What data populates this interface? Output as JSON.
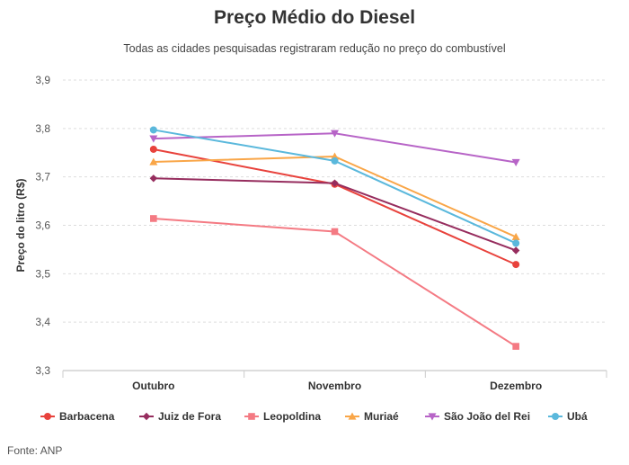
{
  "chart_data": {
    "type": "line",
    "title": "Preço Médio do Diesel",
    "subtitle": "Todas as cidades pesquisadas registraram redução no preço do combustível",
    "ylabel": "Preço do litro (R$)",
    "xlabel": "",
    "categories": [
      "Outubro",
      "Novembro",
      "Dezembro"
    ],
    "ylim": [
      3.3,
      3.9
    ],
    "yticks": [
      "3,3",
      "3,4",
      "3,5",
      "3,6",
      "3,7",
      "3,8",
      "3,9"
    ],
    "ytick_values": [
      3.3,
      3.4,
      3.5,
      3.6,
      3.7,
      3.8,
      3.9
    ],
    "grid": "horizontal dashed",
    "legend_position": "bottom",
    "series": [
      {
        "name": "Barbacena",
        "color": "#e8423c",
        "marker": "circle",
        "values": [
          3.757,
          3.685,
          3.519
        ]
      },
      {
        "name": "Juiz de Fora",
        "color": "#962d5e",
        "marker": "diamond",
        "values": [
          3.697,
          3.687,
          3.548
        ]
      },
      {
        "name": "Leopoldina",
        "color": "#f47a83",
        "marker": "square",
        "values": [
          3.614,
          3.587,
          3.35
        ]
      },
      {
        "name": "Muriaé",
        "color": "#f9a648",
        "marker": "triangle",
        "values": [
          3.731,
          3.742,
          3.576
        ]
      },
      {
        "name": "São João del Rei",
        "color": "#b764c7",
        "marker": "triangle-down",
        "values": [
          3.779,
          3.79,
          3.73
        ]
      },
      {
        "name": "Ubá",
        "color": "#5ab8dc",
        "marker": "circle",
        "values": [
          3.797,
          3.733,
          3.563
        ]
      }
    ]
  },
  "source": "Fonte: ANP"
}
